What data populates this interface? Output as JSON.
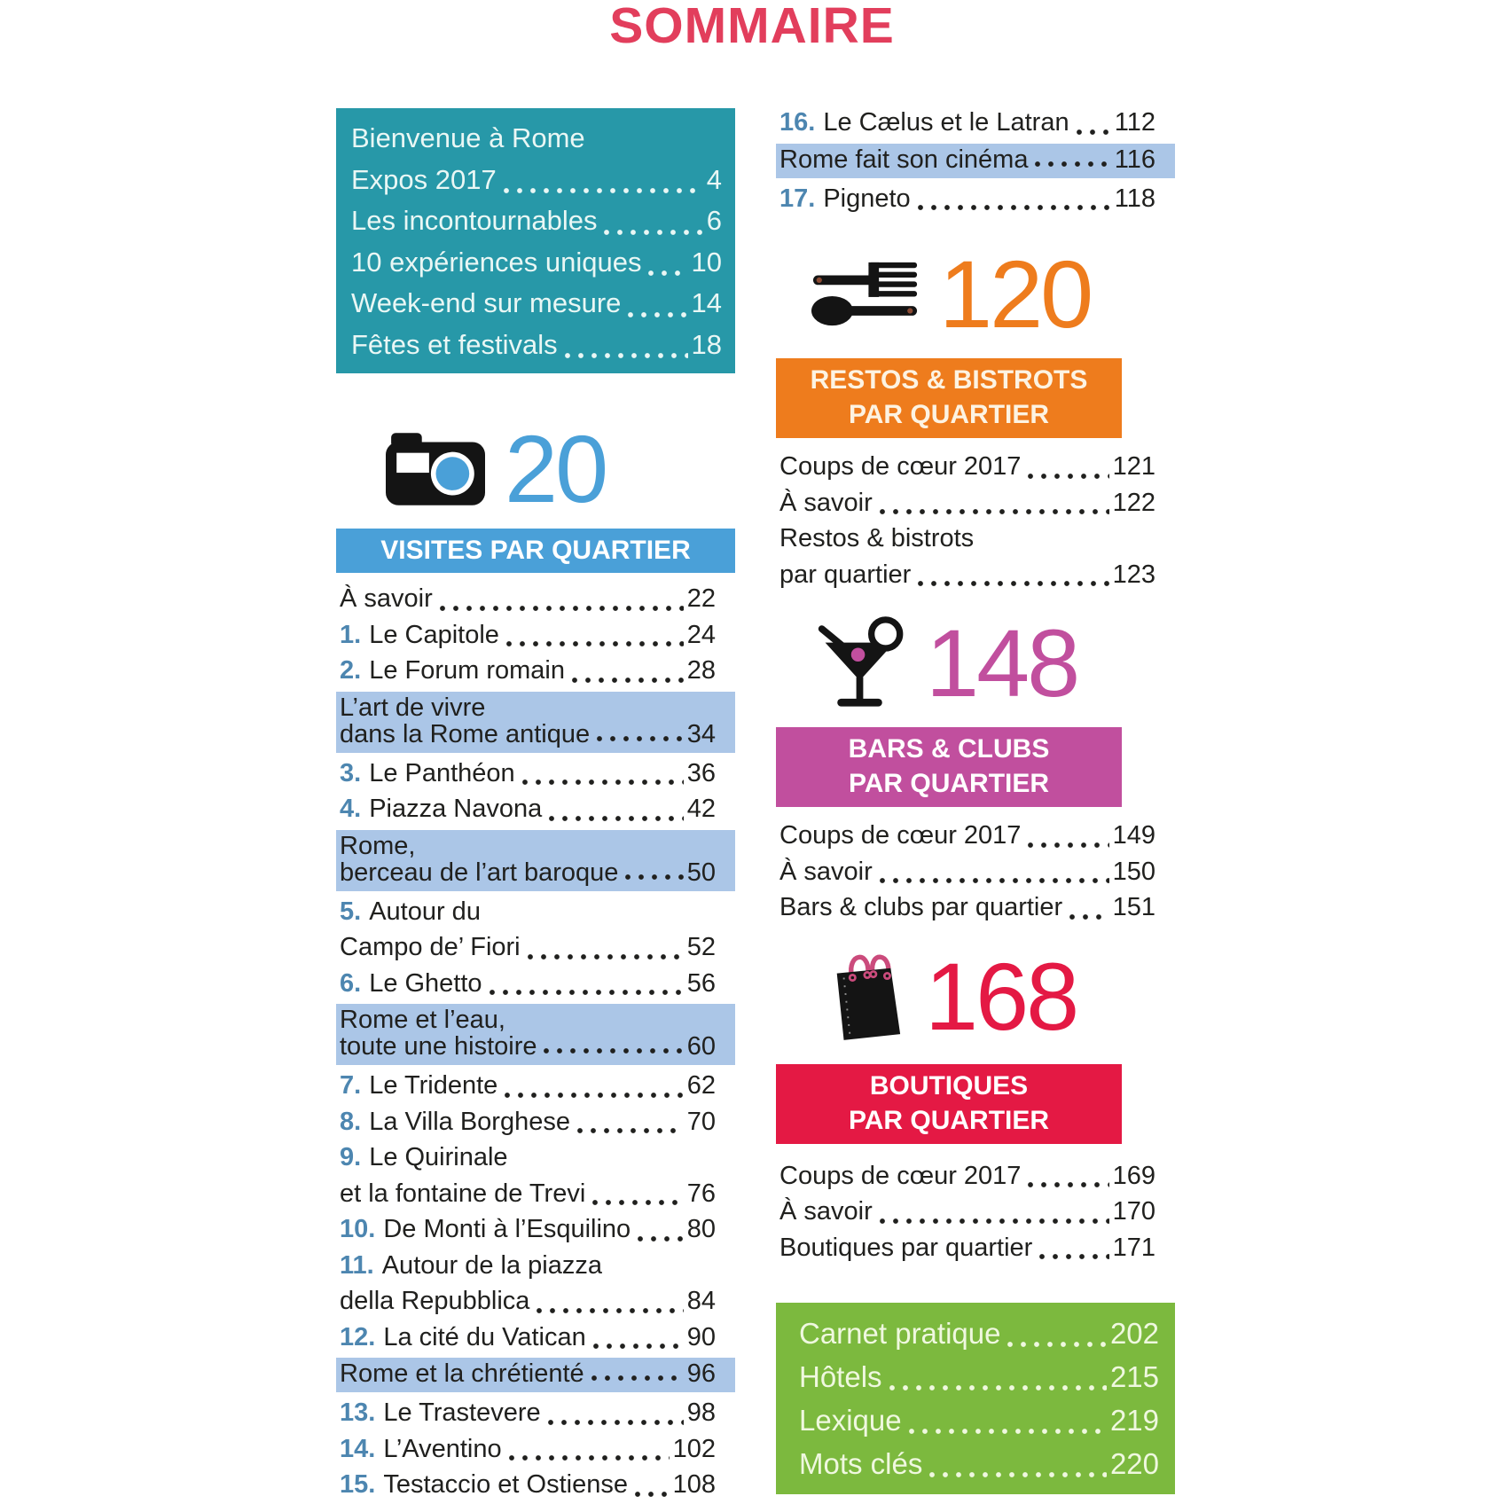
{
  "page_title": "SOMMAIRE",
  "colors": {
    "title_pink": "#e23e5c",
    "teal": "#2798a8",
    "blue_accent": "#4aa0d8",
    "steel_blue_numbers": "#4d86b0",
    "highlight_blue": "#abc6e7",
    "orange": "#ee7c1d",
    "magenta": "#c14f9e",
    "red": "#e41944",
    "green": "#7cb93e",
    "ink": "#20201e",
    "bag_handle_pink": "#cb4b7c"
  },
  "intro_box": {
    "entries": [
      {
        "lines": [
          "Bienvenue à Rome"
        ]
      },
      {
        "lines": [
          "Expos 2017"
        ],
        "page": "4"
      },
      {
        "lines": [
          "Les incontournables"
        ],
        "page": "6"
      },
      {
        "lines": [
          "10 expériences uniques"
        ],
        "page": "10"
      },
      {
        "lines": [
          "Week-end sur mesure"
        ],
        "page": "14"
      },
      {
        "lines": [
          "Fêtes et festivals"
        ],
        "page": "18"
      }
    ]
  },
  "right_top_entries": [
    {
      "num": "16.",
      "lines": [
        "Le Cælus et le Latran"
      ],
      "page": "112"
    },
    {
      "hl": true,
      "lines": [
        "Rome fait son cinéma"
      ],
      "page": "116"
    },
    {
      "num": "17.",
      "lines": [
        "Pigneto"
      ],
      "page": "118"
    }
  ],
  "sections": {
    "visites": {
      "icon": "camera-icon",
      "number": "20",
      "banner": [
        "VISITES PAR QUARTIER"
      ],
      "entries": [
        {
          "lines": [
            "À savoir"
          ],
          "page": "22"
        },
        {
          "num": "1.",
          "lines": [
            "Le Capitole"
          ],
          "page": "24"
        },
        {
          "num": "2.",
          "lines": [
            "Le Forum romain"
          ],
          "page": "28"
        },
        {
          "hl": true,
          "lines": [
            "L’art de vivre",
            "dans la Rome antique"
          ],
          "page": "34"
        },
        {
          "num": "3.",
          "lines": [
            "Le Panthéon"
          ],
          "page": "36"
        },
        {
          "num": "4.",
          "lines": [
            "Piazza Navona"
          ],
          "page": "42"
        },
        {
          "hl": true,
          "lines": [
            "Rome,",
            "berceau de l’art baroque"
          ],
          "page": "50"
        },
        {
          "num": "5.",
          "lines": [
            "Autour du",
            "Campo de’ Fiori"
          ],
          "page": "52"
        },
        {
          "num": "6.",
          "lines": [
            "Le Ghetto"
          ],
          "page": "56"
        },
        {
          "hl": true,
          "lines": [
            "Rome et l’eau,",
            "toute une histoire"
          ],
          "page": "60"
        },
        {
          "num": "7.",
          "lines": [
            "Le Tridente"
          ],
          "page": "62"
        },
        {
          "num": "8.",
          "lines": [
            "La Villa Borghese"
          ],
          "page": "70"
        },
        {
          "num": "9.",
          "lines": [
            "Le Quirinale",
            "et la fontaine de Trevi"
          ],
          "page": "76"
        },
        {
          "num": "10.",
          "lines": [
            "De Monti à l’Esquilino"
          ],
          "page": "80"
        },
        {
          "num": "11.",
          "lines": [
            "Autour de la piazza",
            "della Repubblica"
          ],
          "page": "84"
        },
        {
          "num": "12.",
          "lines": [
            "La cité du Vatican"
          ],
          "page": "90"
        },
        {
          "hl": true,
          "lines": [
            "Rome et la chrétienté"
          ],
          "page": "96"
        },
        {
          "num": "13.",
          "lines": [
            "Le Trastevere"
          ],
          "page": "98"
        },
        {
          "num": "14.",
          "lines": [
            "L’Aventino"
          ],
          "page": "102"
        },
        {
          "num": "15.",
          "lines": [
            "Testaccio et Ostiense"
          ],
          "page": "108"
        }
      ]
    },
    "restos": {
      "icon": "cutlery-icon",
      "number": "120",
      "banner": [
        "RESTOS & BISTROTS",
        "PAR QUARTIER"
      ],
      "entries": [
        {
          "lines": [
            "Coups de cœur 2017"
          ],
          "page": "121"
        },
        {
          "lines": [
            "À savoir"
          ],
          "page": "122"
        },
        {
          "lines": [
            "Restos & bistrots",
            "par quartier"
          ],
          "page": "123"
        }
      ]
    },
    "bars": {
      "icon": "cocktail-icon",
      "number": "148",
      "banner": [
        "BARS & CLUBS",
        "PAR QUARTIER"
      ],
      "entries": [
        {
          "lines": [
            "Coups de cœur 2017"
          ],
          "page": "149"
        },
        {
          "lines": [
            "À savoir"
          ],
          "page": "150"
        },
        {
          "lines": [
            "Bars & clubs par quartier"
          ],
          "page": "151"
        }
      ]
    },
    "boutiques": {
      "icon": "shopping-bag-icon",
      "number": "168",
      "banner": [
        "BOUTIQUES",
        "PAR QUARTIER"
      ],
      "entries": [
        {
          "lines": [
            "Coups de cœur 2017"
          ],
          "page": "169"
        },
        {
          "lines": [
            "À savoir"
          ],
          "page": "170"
        },
        {
          "lines": [
            "Boutiques par quartier"
          ],
          "page": "171"
        }
      ]
    }
  },
  "practical_box": {
    "entries": [
      {
        "lines": [
          "Carnet pratique"
        ],
        "page": "202"
      },
      {
        "lines": [
          "Hôtels"
        ],
        "page": "215"
      },
      {
        "lines": [
          "Lexique"
        ],
        "page": "219"
      },
      {
        "lines": [
          "Mots clés"
        ],
        "page": "220"
      }
    ]
  }
}
